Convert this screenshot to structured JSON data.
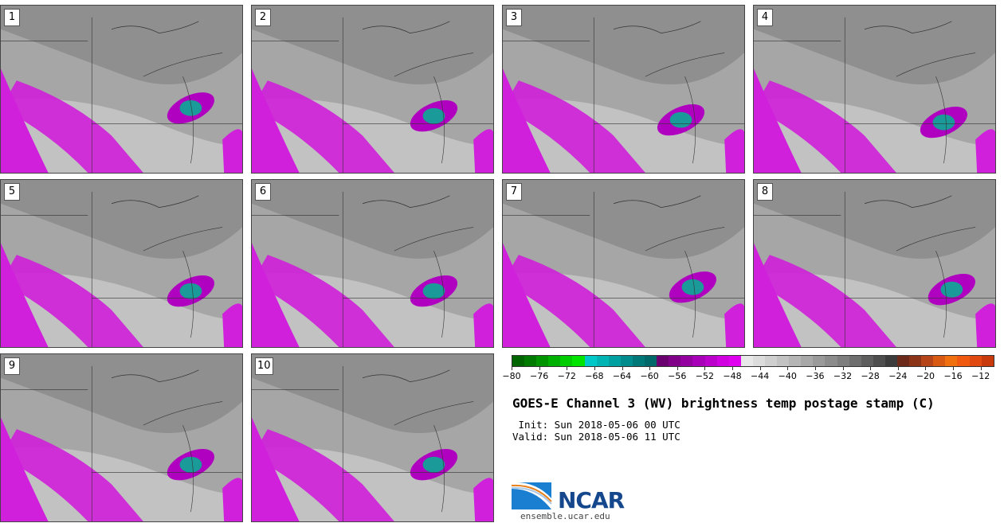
{
  "figure": {
    "title": "GOES-E Channel 3 (WV) brightness temp postage stamp (C)",
    "init": " Init: Sun 2018-05-06 00 UTC",
    "valid": "Valid: Sun 2018-05-06 11 UTC"
  },
  "panels": [
    {
      "label": "1"
    },
    {
      "label": "2"
    },
    {
      "label": "3"
    },
    {
      "label": "4"
    },
    {
      "label": "5"
    },
    {
      "label": "6"
    },
    {
      "label": "7"
    },
    {
      "label": "8"
    },
    {
      "label": "9"
    },
    {
      "label": "10"
    }
  ],
  "colorbar": {
    "min": -80,
    "max": -10,
    "ticks": [
      "−80",
      "−76",
      "−72",
      "−68",
      "−64",
      "−60",
      "−56",
      "−52",
      "−48",
      "−44",
      "−40",
      "−36",
      "−32",
      "−28",
      "−24",
      "−20",
      "−16",
      "−12"
    ],
    "colors": [
      "#006400",
      "#007a00",
      "#009400",
      "#00b000",
      "#00cc00",
      "#00e400",
      "#00c8c8",
      "#00b4b4",
      "#00a0a0",
      "#008c8c",
      "#007878",
      "#006868",
      "#6a0070",
      "#800088",
      "#9400a0",
      "#a800b8",
      "#bc00cc",
      "#d000e0",
      "#e000f0",
      "#e8e8e8",
      "#dcdcdc",
      "#cfcfcf",
      "#c2c2c2",
      "#b5b5b5",
      "#a8a8a8",
      "#9a9a9a",
      "#8c8c8c",
      "#7e7e7e",
      "#6e6e6e",
      "#5e5e5e",
      "#4e4e4e",
      "#3c3c3c",
      "#6b2a1a",
      "#8c3418",
      "#b54418",
      "#d85a12",
      "#f07010",
      "#f05a10",
      "#e04a10",
      "#c83a0c"
    ]
  },
  "logo": {
    "text": "NCAR",
    "url": "ensemble.ucar.edu"
  }
}
